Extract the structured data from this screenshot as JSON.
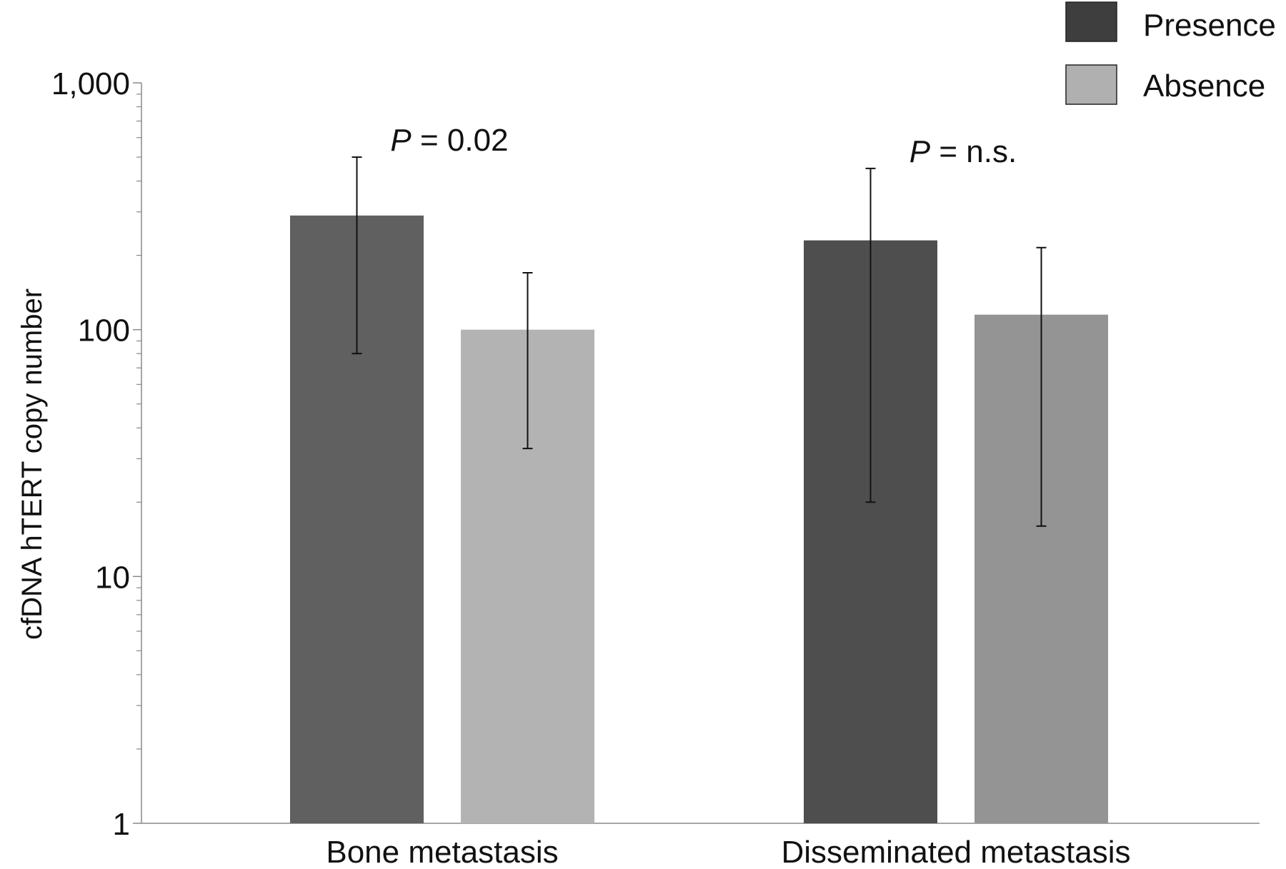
{
  "chart_data": {
    "type": "bar",
    "title": "",
    "xlabel": "",
    "ylabel": "cfDNA hTERT copy number",
    "yscale": "log",
    "ylim": [
      1,
      1000
    ],
    "yticks": [
      1,
      10,
      100,
      1000
    ],
    "ytick_labels": [
      "1",
      "10",
      "100",
      "1,000"
    ],
    "grid": false,
    "legend_position": "top-right",
    "categories": [
      "Bone metastasis",
      "Disseminated metastasis"
    ],
    "series": [
      {
        "name": "Presence",
        "legend_color": "#3e3e3e",
        "colors": [
          "#606060",
          "#4e4e4e"
        ],
        "values": [
          290,
          230
        ],
        "error_low": [
          80,
          20
        ],
        "error_high": [
          500,
          450
        ]
      },
      {
        "name": "Absence",
        "legend_color": "#b0b0b0",
        "colors": [
          "#b3b3b3",
          "#949494"
        ],
        "values": [
          100,
          115
        ],
        "error_low": [
          33,
          16
        ],
        "error_high": [
          170,
          215
        ]
      }
    ],
    "annotations": [
      {
        "category": "Bone metastasis",
        "italic": "P",
        "text": " = 0.02"
      },
      {
        "category": "Disseminated metastasis",
        "italic": "P",
        "text": " = n.s."
      }
    ]
  }
}
